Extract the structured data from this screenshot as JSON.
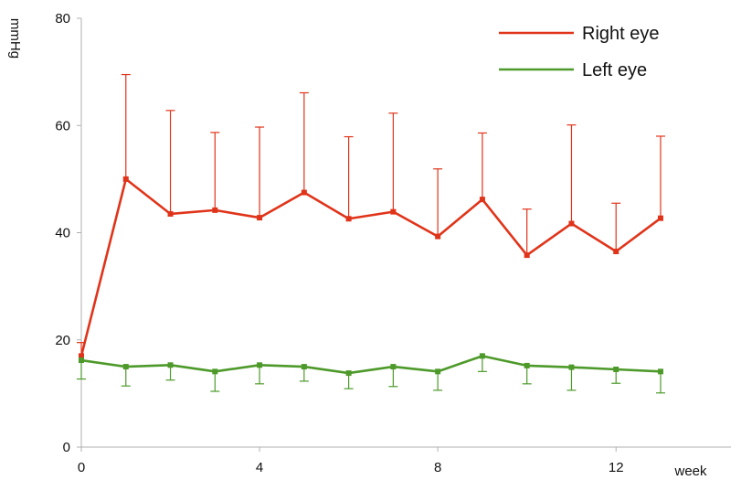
{
  "chart_data": {
    "type": "line",
    "title": "",
    "xlabel": "week",
    "ylabel": "mmHg",
    "xlim": [
      0,
      13
    ],
    "ylim": [
      0,
      80
    ],
    "x_ticks": [
      "0",
      "4",
      "8",
      "12"
    ],
    "y_ticks": [
      "0",
      "20",
      "40",
      "60",
      "80"
    ],
    "grid": false,
    "legend": "top-right",
    "x": [
      0,
      1,
      2,
      3,
      4,
      5,
      6,
      7,
      8,
      9,
      10,
      11,
      12,
      13
    ],
    "series": [
      {
        "name": "Right eye",
        "color": "#e0341a",
        "values": [
          17,
          50,
          43.5,
          44.2,
          42.8,
          47.5,
          42.6,
          43.9,
          39.3,
          46.2,
          35.8,
          41.7,
          36.5,
          42.7
        ],
        "error_upper": [
          19.5,
          69.5,
          62.8,
          58.7,
          59.7,
          66.1,
          57.9,
          62.3,
          51.9,
          58.6,
          44.4,
          60.1,
          45.5,
          58.0
        ]
      },
      {
        "name": "Left eye",
        "color": "#4d9a2a",
        "values": [
          16.2,
          15,
          15.3,
          14.1,
          15.3,
          15,
          13.8,
          15,
          14.1,
          17,
          15.2,
          14.9,
          14.5,
          14.1
        ],
        "error_lower": [
          12.7,
          11.4,
          12.5,
          10.4,
          11.8,
          12.3,
          10.9,
          11.3,
          10.6,
          14.1,
          11.8,
          10.6,
          11.9,
          10.1
        ]
      }
    ]
  }
}
